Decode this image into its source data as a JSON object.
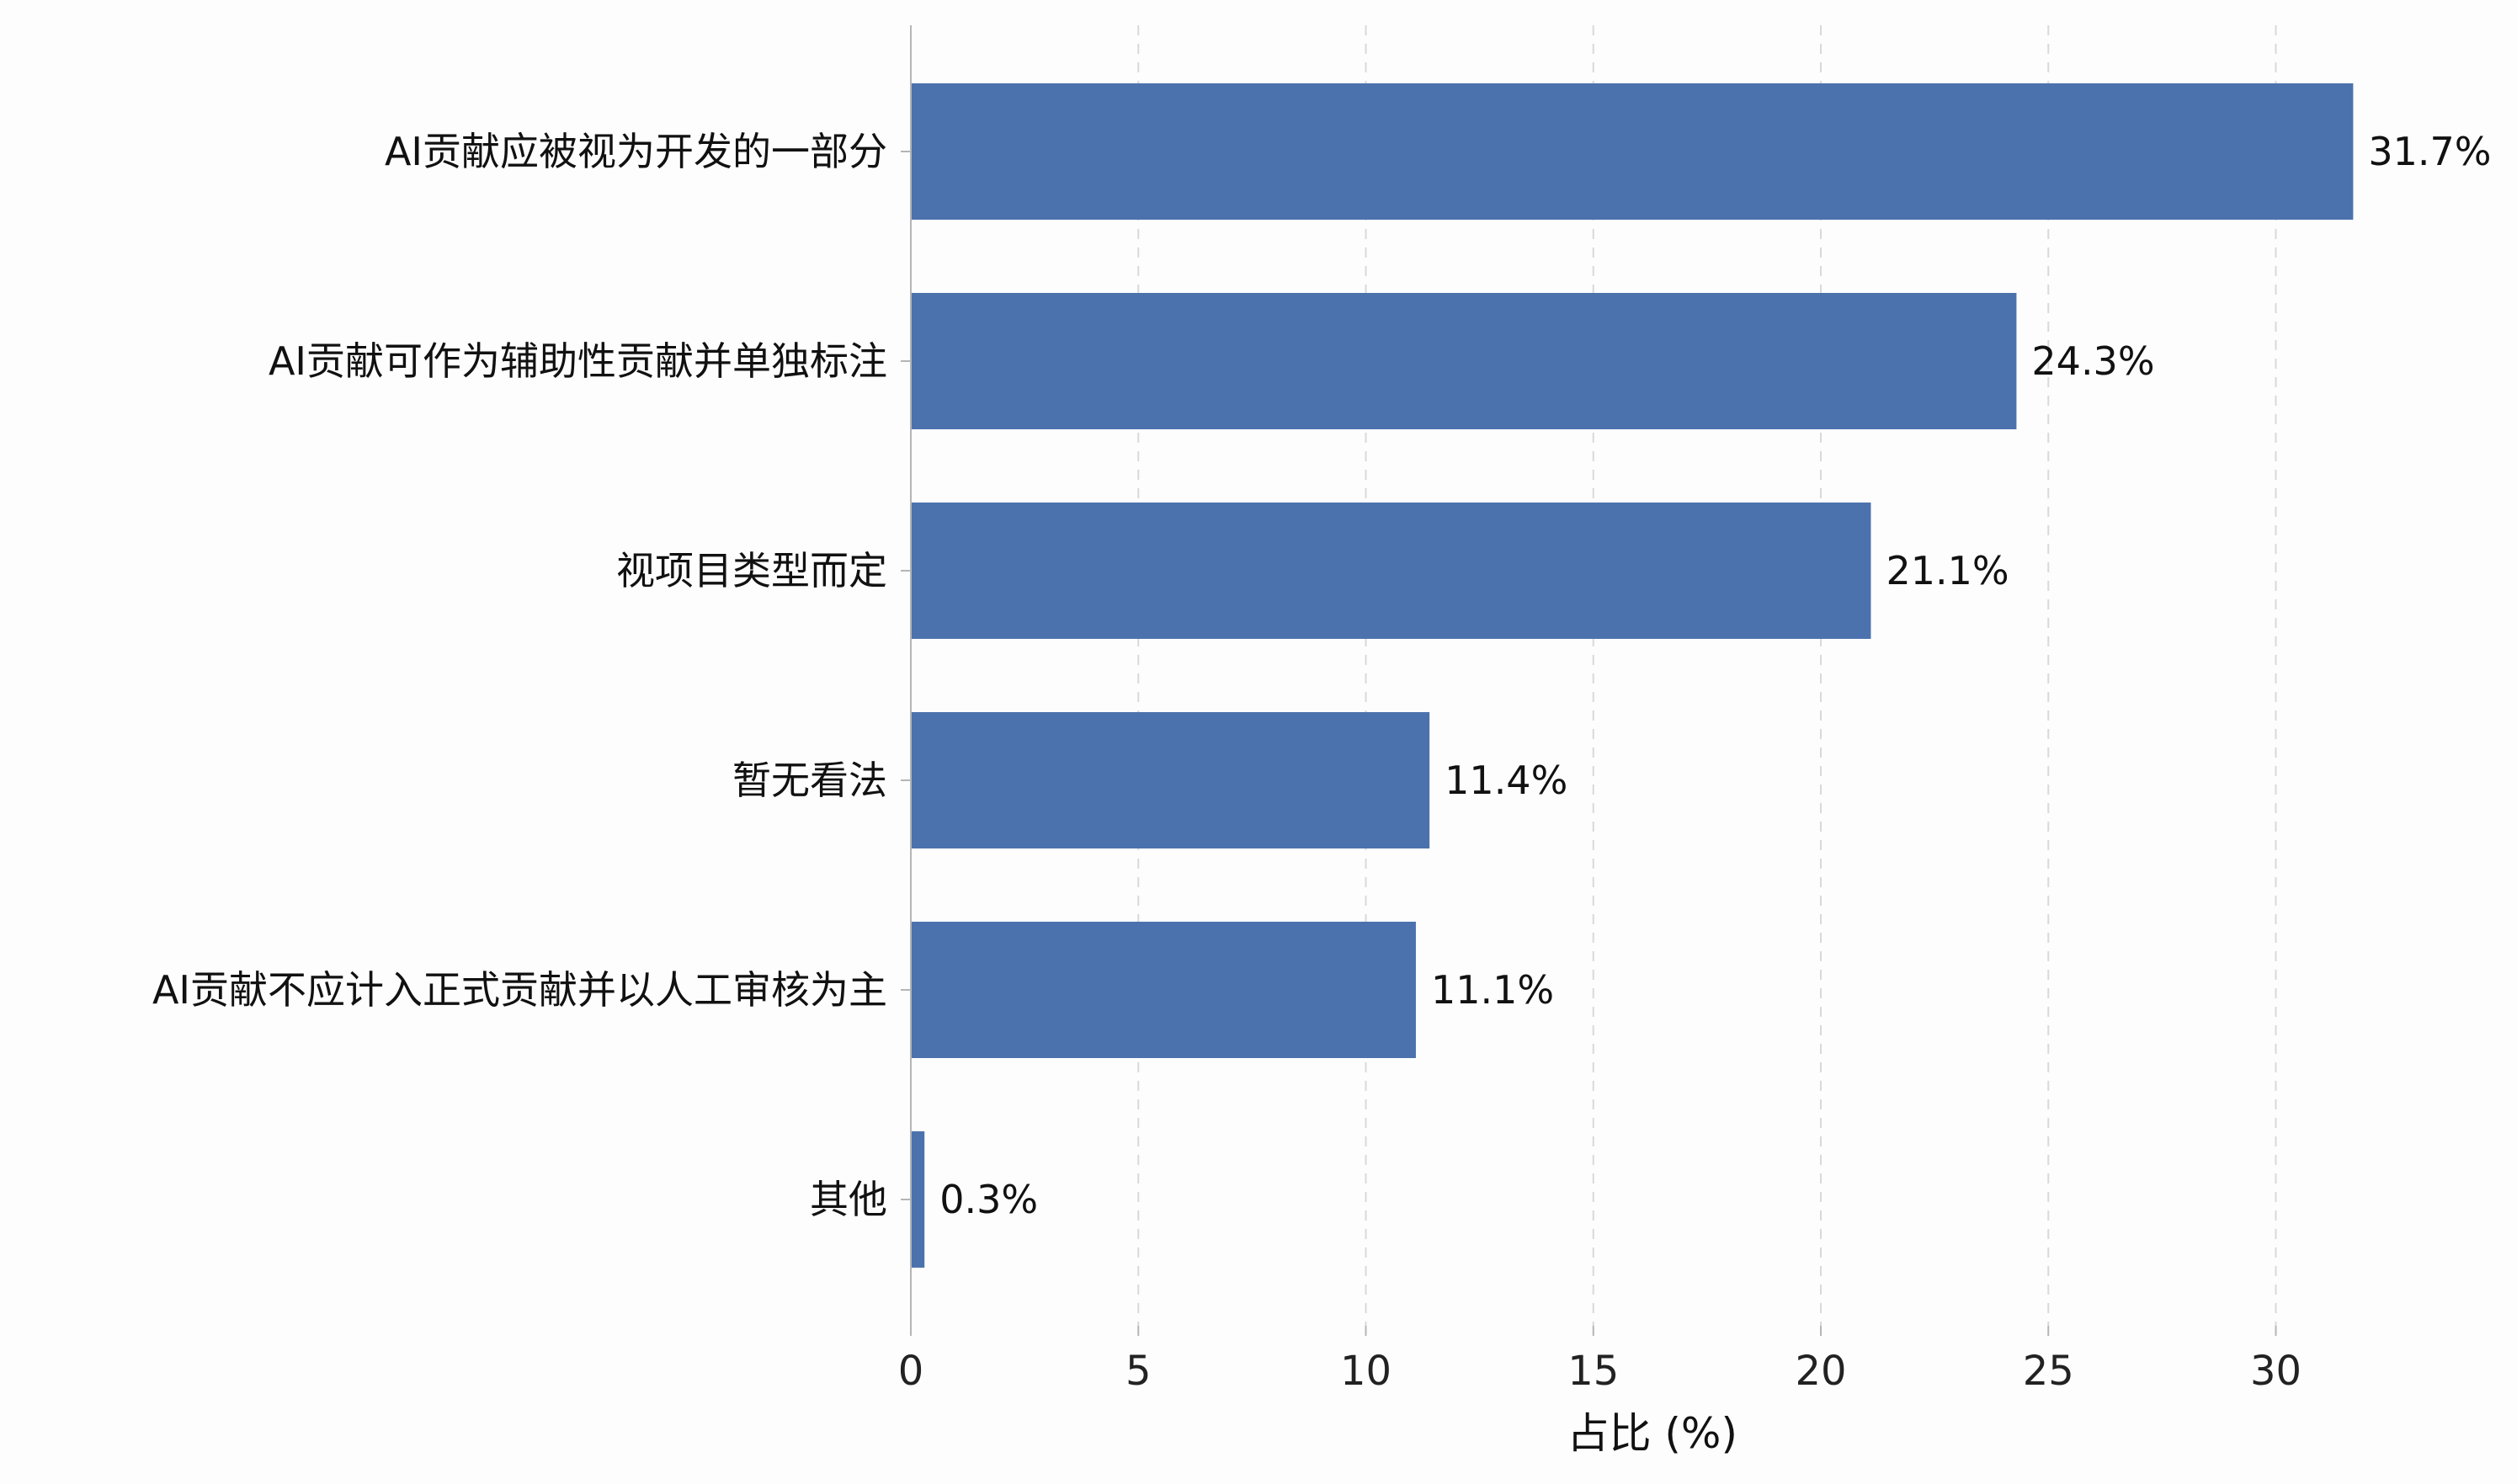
{
  "chart_data": {
    "type": "bar",
    "orientation": "horizontal",
    "categories": [
      "AI贡献应被视为开发的一部分",
      "AI贡献可作为辅助性贡献并单独标注",
      "视项目类型而定",
      "暂无看法",
      "AI贡献不应计入正式贡献并以人工审核为主",
      "其他"
    ],
    "values": [
      31.7,
      24.3,
      21.1,
      11.4,
      11.1,
      0.3
    ],
    "value_labels": [
      "31.7%",
      "24.3%",
      "21.1%",
      "11.4%",
      "11.1%",
      "0.3%"
    ],
    "xlabel": "占比 (%)",
    "ylabel": "",
    "xlim": [
      0,
      33
    ],
    "xticks": [
      0,
      5,
      10,
      15,
      20,
      25,
      30
    ],
    "grid": "vertical-dashed",
    "colors": {
      "bar": "#4c72ae",
      "grid": "#d9d9d9",
      "axis": "#b5b5b5",
      "text": "#111111",
      "background": "#fdfdfd"
    }
  }
}
